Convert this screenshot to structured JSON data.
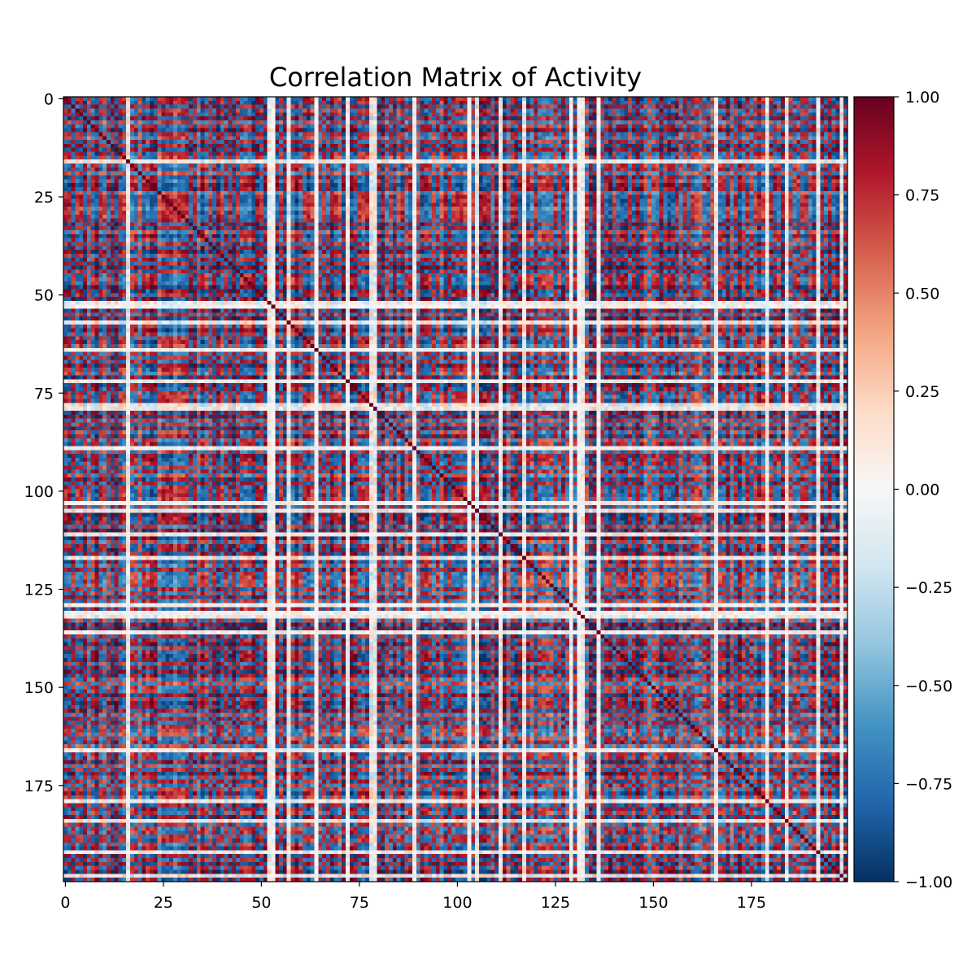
{
  "chart_data": {
    "type": "heatmap",
    "title": "Correlation Matrix of Activity",
    "xlabel": "",
    "ylabel": "",
    "n": 200,
    "x_ticks": [
      0,
      25,
      50,
      75,
      100,
      125,
      150,
      175
    ],
    "y_ticks": [
      0,
      25,
      50,
      75,
      100,
      125,
      150,
      175
    ],
    "colorbar": {
      "colormap": "RdBu_r",
      "vmin": -1.0,
      "vmax": 1.0,
      "ticks": [
        1.0,
        0.75,
        0.5,
        0.25,
        0.0,
        -0.25,
        -0.5,
        -0.75,
        -1.0
      ],
      "tick_labels": [
        "1.00",
        "0.75",
        "0.50",
        "0.25",
        "0.00",
        "−0.25",
        "−0.50",
        "−0.75",
        "−1.00"
      ]
    },
    "values_note_not_rendered": null
  }
}
